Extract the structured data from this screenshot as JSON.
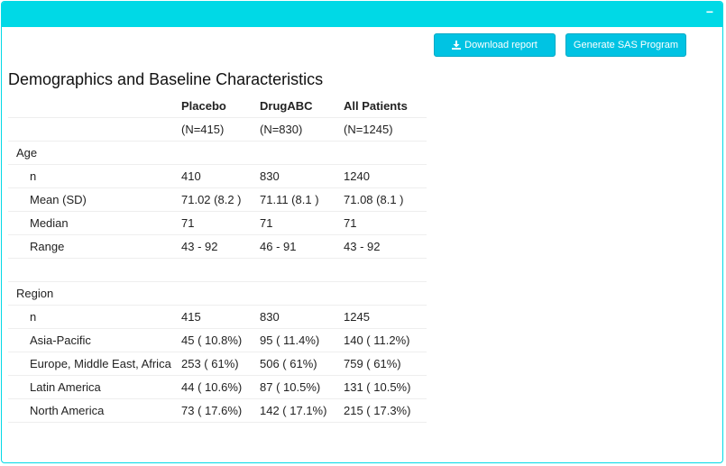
{
  "buttons": {
    "download_label": "Download report",
    "sas_label": "Generate SAS Program",
    "collapse_label": "−"
  },
  "report": {
    "title": "Demographics and Baseline Characteristics",
    "columns": [
      "Placebo",
      "DrugABC",
      "All Patients"
    ],
    "n_labels": [
      "(N=415)",
      "(N=830)",
      "(N=1245)"
    ],
    "sections": [
      {
        "label": "Age",
        "rows": [
          {
            "label": "n",
            "values": [
              "410",
              "830",
              "1240"
            ]
          },
          {
            "label": "Mean (SD)",
            "values": [
              "71.02 (8.2 )",
              "71.11 (8.1 )",
              "71.08 (8.1 )"
            ]
          },
          {
            "label": "Median",
            "values": [
              "71",
              "71",
              "71"
            ]
          },
          {
            "label": "Range",
            "values": [
              "43 - 92",
              "46 - 91",
              "43 - 92"
            ]
          }
        ]
      },
      {
        "label": "Region",
        "rows": [
          {
            "label": "n",
            "values": [
              "415",
              "830",
              "1245"
            ]
          },
          {
            "label": "Asia-Pacific",
            "values": [
              "45 ( 10.8%)",
              "95 ( 11.4%)",
              "140 ( 11.2%)"
            ]
          },
          {
            "label": "Europe, Middle East, Africa",
            "values": [
              "253 ( 61%)",
              "506 ( 61%)",
              "759 ( 61%)"
            ]
          },
          {
            "label": "Latin America",
            "values": [
              "44 ( 10.6%)",
              "87 ( 10.5%)",
              "131 ( 10.5%)"
            ]
          },
          {
            "label": "North America",
            "values": [
              "73 ( 17.6%)",
              "142 ( 17.1%)",
              "215 ( 17.3%)"
            ]
          }
        ]
      }
    ]
  },
  "colors": {
    "header": "#00d9e6",
    "button": "#00c3e3"
  },
  "icons": {
    "download": "download-icon"
  }
}
